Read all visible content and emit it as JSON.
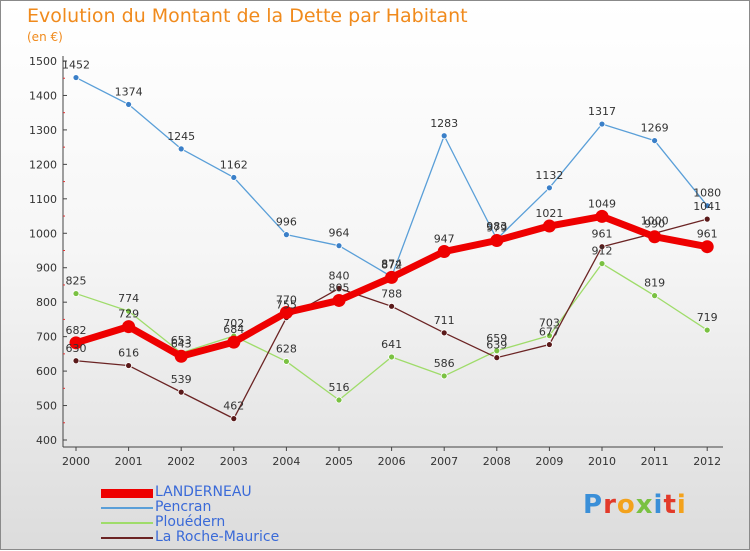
{
  "header": {
    "title": "Evolution du Montant de la Dette par Habitant",
    "subtitle": "(en €)"
  },
  "logo": {
    "text": "Proxiti",
    "colors": [
      "#3a8fd8",
      "#e23a2a",
      "#f3a21c",
      "#7ac142",
      "#3a8fd8",
      "#e23a2a",
      "#f3a21c"
    ]
  },
  "chart_data": {
    "type": "line",
    "title": "Evolution du Montant de la Dette par Habitant",
    "subtitle": "(en €)",
    "xlabel": "",
    "ylabel": "",
    "categories": [
      "2000",
      "2001",
      "2002",
      "2003",
      "2004",
      "2005",
      "2006",
      "2007",
      "2008",
      "2009",
      "2010",
      "2011",
      "2012"
    ],
    "ylim": [
      400,
      1500
    ],
    "yticks": [
      400,
      500,
      600,
      700,
      800,
      900,
      1000,
      1100,
      1200,
      1300,
      1400,
      1500
    ],
    "grid": false,
    "legend_position": "bottom-left",
    "series": [
      {
        "name": "Pencran",
        "color": "#5a9fd8",
        "marker": "#3a7fc8",
        "values": [
          1452,
          1374,
          1245,
          1162,
          996,
          964,
          874,
          1283,
          983,
          1132,
          1317,
          1269,
          1080
        ]
      },
      {
        "name": "Plouédern",
        "color": "#9fdc6a",
        "marker": "#7ac142",
        "values": [
          825,
          774,
          653,
          702,
          628,
          516,
          641,
          586,
          659,
          703,
          912,
          819,
          719
        ]
      },
      {
        "name": "La Roche-Maurice",
        "color": "#6b2424",
        "marker": "#5a1a1a",
        "values": [
          630,
          616,
          539,
          462,
          755,
          840,
          788,
          711,
          639,
          677,
          961,
          1000,
          1041
        ]
      },
      {
        "name": "LANDERNEAU",
        "color": "#ee0000",
        "marker": "#ee0000",
        "values": [
          682,
          729,
          643,
          684,
          770,
          805,
          872,
          947,
          979,
          1021,
          1049,
          990,
          961
        ]
      }
    ]
  }
}
